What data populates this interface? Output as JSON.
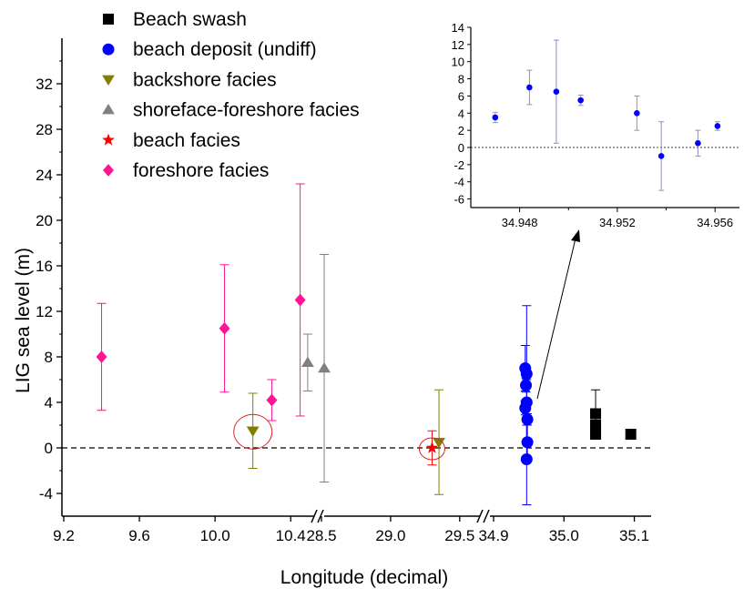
{
  "chart_data": [
    {
      "type": "scatter",
      "xlabel": "Longitude (decimal)",
      "ylabel": "LIG sea level (m)",
      "ylim": [
        -6,
        36
      ],
      "y_ticks": [
        "-4",
        "0",
        "4",
        "8",
        "12",
        "16",
        "20",
        "24",
        "28",
        "32"
      ],
      "x_axis_breaks": true,
      "x_segments": [
        {
          "range": [
            9.2,
            10.5
          ],
          "ticks": [
            "9.2",
            "9.6",
            "10.0",
            "10.4"
          ]
        },
        {
          "range": [
            28.5,
            29.6
          ],
          "ticks": [
            "28.5",
            "29.0",
            "29.5"
          ]
        },
        {
          "range": [
            34.9,
            35.12
          ],
          "ticks": [
            "34.9",
            "35.0",
            "35.1"
          ]
        }
      ],
      "reference_line_y": 0,
      "legend_placement": "top-left",
      "series": [
        {
          "name": "Beach swash",
          "color": "#000000",
          "marker": "square",
          "points": [
            {
              "x": 35.045,
              "y": 3.0,
              "err": 2.1
            },
            {
              "x": 35.045,
              "y": 2.0,
              "err": 0
            },
            {
              "x": 35.045,
              "y": 1.2,
              "err": 0
            },
            {
              "x": 35.095,
              "y": 1.2,
              "err": 0.3
            }
          ]
        },
        {
          "name": "beach deposit (undiff)",
          "color": "#0000ff",
          "marker": "circle",
          "points": [
            {
              "x": 34.945,
              "y": 7.0,
              "err": 2.0
            },
            {
              "x": 34.947,
              "y": 6.5,
              "err": 6.0
            },
            {
              "x": 34.946,
              "y": 5.5,
              "err": 0.6
            },
            {
              "x": 34.947,
              "y": 4.0,
              "err": 2.0
            },
            {
              "x": 34.945,
              "y": 3.5,
              "err": 0.6
            },
            {
              "x": 34.948,
              "y": 2.5,
              "err": 0.5
            },
            {
              "x": 34.948,
              "y": 0.5,
              "err": 1.5
            },
            {
              "x": 34.947,
              "y": -1.0,
              "err": 4.0
            }
          ]
        },
        {
          "name": "backshore facies",
          "color": "#808000",
          "marker": "triangle-down",
          "points": [
            {
              "x": 10.2,
              "y": 1.5,
              "err": 3.3,
              "circled": true
            },
            {
              "x": 29.35,
              "y": 0.5,
              "err": 4.6
            }
          ]
        },
        {
          "name": "shoreface-foreshore facies",
          "color": "#808080",
          "marker": "triangle-up",
          "points": [
            {
              "x": 10.49,
              "y": 7.5,
              "err": 2.5
            },
            {
              "x": 28.52,
              "y": 7.0,
              "err": 10.0
            }
          ]
        },
        {
          "name": "beach facies",
          "color": "#ff0000",
          "marker": "star",
          "points": [
            {
              "x": 29.3,
              "y": 0.0,
              "err": 1.5,
              "circled": true
            }
          ]
        },
        {
          "name": "foreshore facies",
          "color": "#ff1493",
          "marker": "diamond",
          "points": [
            {
              "x": 9.4,
              "y": 8.0,
              "err": 4.7
            },
            {
              "x": 10.05,
              "y": 10.5,
              "err": 5.6
            },
            {
              "x": 10.3,
              "y": 4.2,
              "err": 1.8
            },
            {
              "x": 10.45,
              "y": 13.0,
              "err": 10.2
            }
          ]
        }
      ]
    },
    {
      "type": "scatter",
      "inset": true,
      "xlim": [
        34.946,
        34.957
      ],
      "ylim": [
        -7,
        14
      ],
      "x_ticks": [
        "34.948",
        "34.952",
        "34.956"
      ],
      "y_ticks": [
        "-6",
        "-4",
        "-2",
        "0",
        "2",
        "4",
        "6",
        "8",
        "10",
        "12",
        "14"
      ],
      "reference_line_y": 0,
      "series": [
        {
          "color": "#0000ff",
          "marker": "circle",
          "points": [
            {
              "x": 34.947,
              "y": 3.5,
              "err": 0.6
            },
            {
              "x": 34.9484,
              "y": 7.0,
              "err": 2.0
            },
            {
              "x": 34.9495,
              "y": 6.5,
              "err": 6.0
            },
            {
              "x": 34.9505,
              "y": 5.5,
              "err": 0.6
            },
            {
              "x": 34.9528,
              "y": 4.0,
              "err": 2.0
            },
            {
              "x": 34.9538,
              "y": -1.0,
              "err": 4.0
            },
            {
              "x": 34.9553,
              "y": 0.5,
              "err": 1.5
            },
            {
              "x": 34.9561,
              "y": 2.5,
              "err": 0.5
            }
          ]
        }
      ]
    }
  ]
}
